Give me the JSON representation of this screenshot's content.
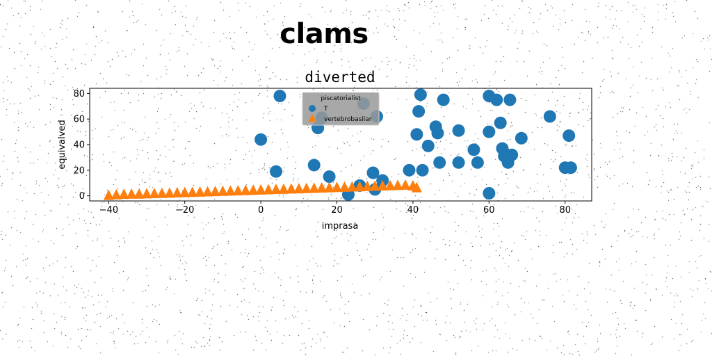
{
  "figure": {
    "suptitle": "clams"
  },
  "colors": {
    "series_circle": "#1f77b4",
    "series_triangle": "#ff7f0e",
    "legend_bg": "#999999"
  },
  "chart_data": {
    "type": "scatter",
    "title": "diverted",
    "xlabel": "imprasa",
    "ylabel": "equivalved",
    "xlim": [
      -45,
      87
    ],
    "ylim": [
      -4,
      84
    ],
    "xticks": [
      -40,
      -20,
      0,
      20,
      40,
      60,
      80
    ],
    "yticks": [
      0,
      20,
      40,
      60,
      80
    ],
    "grid": false,
    "legend": {
      "title": "piscatorialist",
      "placement": "upper-center"
    },
    "series": [
      {
        "name": "T",
        "marker": "circle",
        "color": "#1f77b4",
        "points": [
          [
            0,
            44
          ],
          [
            5,
            78
          ],
          [
            4,
            19
          ],
          [
            14,
            24
          ],
          [
            15,
            53
          ],
          [
            16,
            61
          ],
          [
            18,
            15
          ],
          [
            23,
            1
          ],
          [
            26,
            8
          ],
          [
            27,
            72
          ],
          [
            29.5,
            18
          ],
          [
            30,
            5
          ],
          [
            30.5,
            62
          ],
          [
            32,
            12
          ],
          [
            39,
            20
          ],
          [
            41,
            48
          ],
          [
            41.5,
            66
          ],
          [
            42,
            79
          ],
          [
            42.5,
            20
          ],
          [
            44,
            39
          ],
          [
            46,
            54
          ],
          [
            46.5,
            49
          ],
          [
            47,
            26
          ],
          [
            48,
            75
          ],
          [
            52,
            51
          ],
          [
            52,
            26
          ],
          [
            56,
            36
          ],
          [
            57,
            26
          ],
          [
            60,
            78
          ],
          [
            60,
            50
          ],
          [
            60,
            2
          ],
          [
            62,
            75
          ],
          [
            63,
            57
          ],
          [
            63.5,
            37
          ],
          [
            64,
            31
          ],
          [
            65,
            26
          ],
          [
            65.5,
            75
          ],
          [
            66,
            32
          ],
          [
            68.5,
            45
          ],
          [
            76,
            62
          ],
          [
            80,
            22
          ],
          [
            81,
            47
          ],
          [
            81.5,
            22
          ]
        ]
      },
      {
        "name": "vertebrobasilar",
        "marker": "triangle",
        "color": "#ff7f0e",
        "points": [
          [
            -40,
            0
          ],
          [
            -38,
            0.5
          ],
          [
            -36,
            0.8
          ],
          [
            -34,
            1.0
          ],
          [
            -32,
            1.0
          ],
          [
            -30,
            1.2
          ],
          [
            -28,
            1.4
          ],
          [
            -26,
            1.6
          ],
          [
            -24,
            1.8
          ],
          [
            -22,
            2.0
          ],
          [
            -20,
            2.2
          ],
          [
            -18,
            2.4
          ],
          [
            -16,
            2.6
          ],
          [
            -14,
            2.8
          ],
          [
            -12,
            3.0
          ],
          [
            -10,
            3.2
          ],
          [
            -8,
            3.4
          ],
          [
            -6,
            3.6
          ],
          [
            -4,
            3.8
          ],
          [
            -2,
            4.0
          ],
          [
            0,
            4.2
          ],
          [
            2,
            4.4
          ],
          [
            4,
            4.6
          ],
          [
            6,
            4.8
          ],
          [
            8,
            5.0
          ],
          [
            10,
            5.2
          ],
          [
            12,
            5.4
          ],
          [
            14,
            5.6
          ],
          [
            16,
            5.8
          ],
          [
            18,
            6.0
          ],
          [
            20,
            6.2
          ],
          [
            22,
            6.4
          ],
          [
            24,
            6.6
          ],
          [
            26,
            6.8
          ],
          [
            28,
            7.0
          ],
          [
            30,
            7.2
          ],
          [
            32,
            7.4
          ],
          [
            34,
            7.6
          ],
          [
            36,
            7.8
          ],
          [
            38,
            8.0
          ],
          [
            40,
            7.5
          ],
          [
            41,
            6.0
          ]
        ]
      }
    ]
  }
}
